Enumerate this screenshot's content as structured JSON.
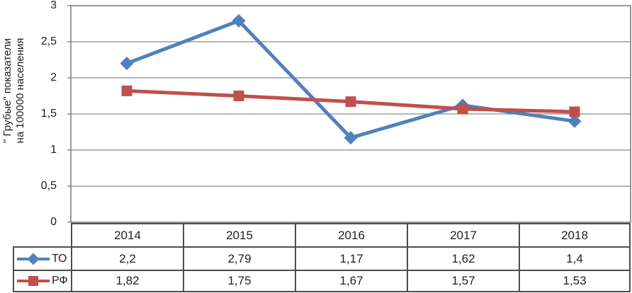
{
  "chart_data": {
    "type": "line",
    "title": "",
    "ylabel_line1": "\" Грубые\" показатели",
    "ylabel_line2": "на 100000 населения",
    "categories": [
      "2014",
      "2015",
      "2016",
      "2017",
      "2018"
    ],
    "series": [
      {
        "name": "ТО",
        "marker": "diamond",
        "color": "#4F81BD",
        "values": [
          2.2,
          2.79,
          1.17,
          1.62,
          1.4
        ],
        "labels": [
          "2,2",
          "2,79",
          "1,17",
          "1,62",
          "1,4"
        ]
      },
      {
        "name": "РФ",
        "marker": "square",
        "color": "#C0504D",
        "values": [
          1.82,
          1.75,
          1.67,
          1.57,
          1.53
        ],
        "labels": [
          "1,82",
          "1,75",
          "1,67",
          "1,57",
          "1,53"
        ]
      }
    ],
    "ylim": [
      0,
      3
    ],
    "yticks": [
      0,
      0.5,
      1,
      1.5,
      2,
      2.5,
      3
    ],
    "ytick_labels": [
      "0",
      "0,5",
      "1",
      "1,5",
      "2",
      "2,5",
      "3"
    ],
    "grid": "horizontal",
    "legend_position": "table-left",
    "colors": {
      "grid": "#8a8a8a",
      "plot_border": "#7f7f7f",
      "table_border": "#4d4d4d",
      "text": "#1f1f1f"
    }
  }
}
